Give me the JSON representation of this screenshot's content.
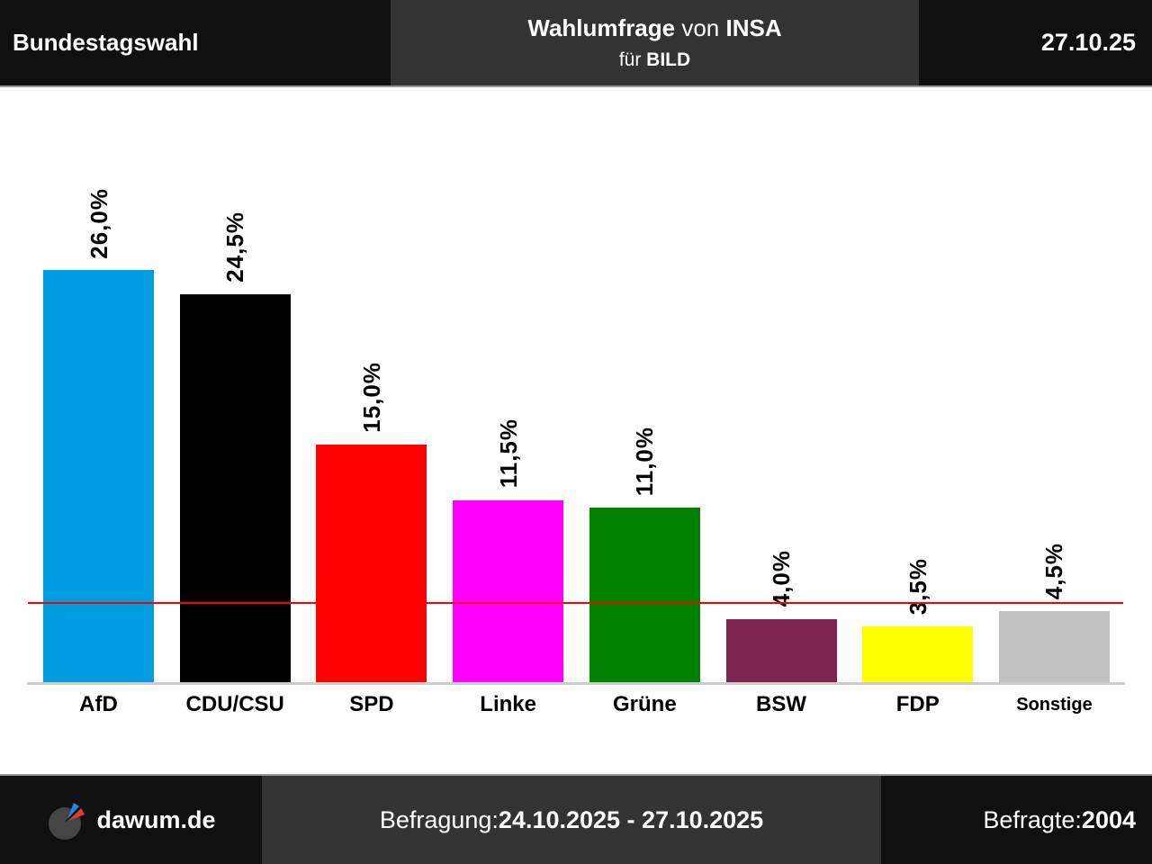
{
  "header": {
    "left_title": "Bundestagswahl",
    "center": {
      "line1_bold1": "Wahlumfrage",
      "line1_regular": " von ",
      "line1_bold2": "INSA",
      "line2_regular": "für ",
      "line2_bold": "BILD"
    },
    "date": "27.10.25"
  },
  "chart_data": {
    "type": "bar",
    "title": "Wahlumfrage von INSA für BILD, 27.10.25",
    "categories": [
      "AfD",
      "CDU/CSU",
      "SPD",
      "Linke",
      "Grüne",
      "BSW",
      "FDP",
      "Sonstige"
    ],
    "values": [
      26.0,
      24.5,
      15.0,
      11.5,
      11.0,
      4.0,
      3.5,
      4.5
    ],
    "value_labels": [
      "26,0%",
      "24,5%",
      "15,0%",
      "11,5%",
      "11,0%",
      "4,0%",
      "3,5%",
      "4,5%"
    ],
    "bar_colors": [
      "#009EE0",
      "#000000",
      "#FF0000",
      "#FF00FF",
      "#008000",
      "#7C2350",
      "#FFFF00",
      "#C0C0C0"
    ],
    "threshold_line": {
      "value": 5,
      "color": "#FF0000"
    },
    "xlabel": "",
    "ylabel": "",
    "ylim": [
      0,
      37.5
    ],
    "grid": false,
    "legend": false,
    "axis_color": "#CCCCCC"
  },
  "footer": {
    "brand": "dawum.de",
    "survey_label": "Befragung: ",
    "survey_period": "24.10.2025 - 27.10.2025",
    "respondents_label": "Befragte: ",
    "respondents_value": "2004"
  },
  "icons": {
    "logo_pie_color": "#454545",
    "logo_blue": "#1E88E5",
    "logo_red": "#E53935"
  }
}
